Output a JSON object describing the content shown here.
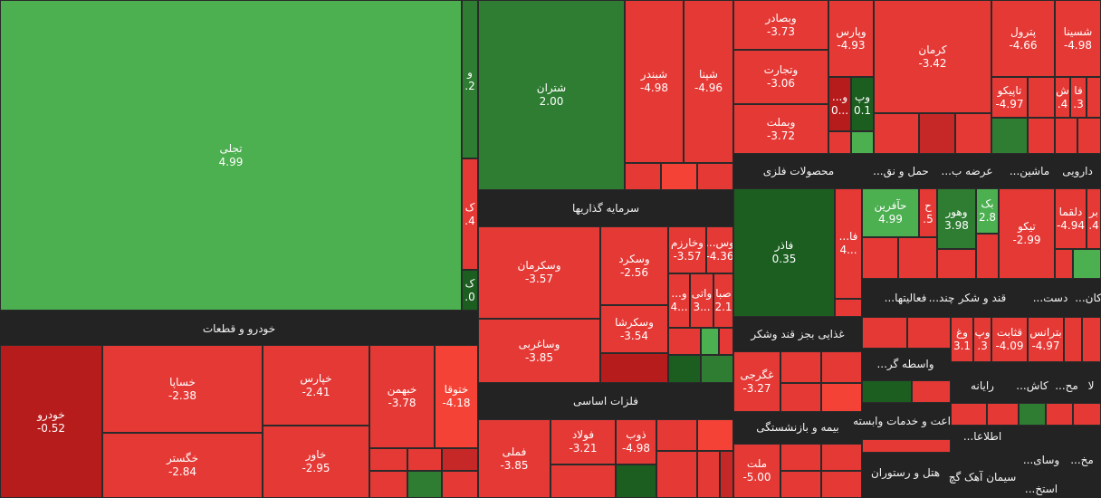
{
  "tiles": [
    {
      "label": "تجلی",
      "value": "4.99"
    },
    {
      "label": "و",
      "value": ".2"
    },
    {
      "label": "ک",
      "value": ".4"
    },
    {
      "label": "ک",
      "value": ".0"
    },
    {
      "label": "خودرو",
      "value": "-0.52"
    },
    {
      "label": "خساپا",
      "value": "-2.38"
    },
    {
      "label": "خگستر",
      "value": "-2.84"
    },
    {
      "label": "خپارس",
      "value": "-2.41"
    },
    {
      "label": "خاور",
      "value": "-2.95"
    },
    {
      "label": "خبهمن",
      "value": "-3.78"
    },
    {
      "label": "ختوقا",
      "value": "-4.18"
    },
    {
      "label": "شتران",
      "value": "2.00"
    },
    {
      "label": "شبندر",
      "value": "-4.98"
    },
    {
      "label": "شپنا",
      "value": "-4.96"
    },
    {
      "label": "وسکرمان",
      "value": "-3.57"
    },
    {
      "label": "وسکرد",
      "value": "-2.56"
    },
    {
      "label": "وخارزم",
      "value": "-3.57"
    },
    {
      "label": "وس...",
      "value": "-4.36"
    },
    {
      "label": "و...",
      "value": "4..."
    },
    {
      "label": "واتی",
      "value": "3..."
    },
    {
      "label": "صبا",
      "value": "2.1"
    },
    {
      "label": "وساغربی",
      "value": "-3.85"
    },
    {
      "label": "وسکرشا",
      "value": "-3.54"
    },
    {
      "label": "فملی",
      "value": "-3.85"
    },
    {
      "label": "فولاد",
      "value": "-3.21"
    },
    {
      "label": "ذوب",
      "value": "-4.98"
    },
    {
      "label": "وبصادر",
      "value": "-3.73"
    },
    {
      "label": "وتجارت",
      "value": "-3.06"
    },
    {
      "label": "وبملت",
      "value": "-3.72"
    },
    {
      "label": "وپارس",
      "value": "-4.93"
    },
    {
      "label": "و...",
      "value": "0..."
    },
    {
      "label": "وپ",
      "value": "0.1"
    },
    {
      "label": "کرمان",
      "value": "-3.42"
    },
    {
      "label": "پترول",
      "value": "-4.66"
    },
    {
      "label": "شسینا",
      "value": "-4.98"
    },
    {
      "label": "تاپیکو",
      "value": "-4.97"
    },
    {
      "label": "ش",
      "value": ".4"
    },
    {
      "label": "فا",
      "value": ".3"
    },
    {
      "label": "فاذر",
      "value": "0.35"
    },
    {
      "label": "فا...",
      "value": "4..."
    },
    {
      "label": "حآفرین",
      "value": "4.99"
    },
    {
      "label": "ح",
      "value": ".5"
    },
    {
      "label": "وهور",
      "value": "3.98"
    },
    {
      "label": "بک",
      "value": "2.8"
    },
    {
      "label": "تیکو",
      "value": "-2.99"
    },
    {
      "label": "دلقما",
      "value": "-4.94"
    },
    {
      "label": "بر",
      "value": ".4"
    },
    {
      "label": "غگرجی",
      "value": "-3.27"
    },
    {
      "label": "ملت",
      "value": "-5.00"
    },
    {
      "label": "وغ",
      "value": "3.1"
    },
    {
      "label": "وپ",
      "value": ".3"
    },
    {
      "label": "قثابت",
      "value": "-4.09"
    },
    {
      "label": "بترانس",
      "value": "-4.97"
    }
  ],
  "headers": [
    "خودرو و قطعات",
    "سرمایه گذاریها",
    "فلزات اساسی",
    "محصولات فلزی",
    "حمل و نق...",
    "عرضه ب...",
    "ماشین...",
    "دارویی",
    "فعالیتها...",
    "قند و شکر",
    "چند...",
    "دست...",
    "کان...",
    "غذایی بجز قند وشکر",
    "واسطه گر...",
    "اعت و خدمات وابسته",
    "هتل و رستوران",
    "بیمه و بازنشستگی",
    "رایانه",
    "کاش...",
    "مح...",
    "لا",
    "اطلاعا...",
    "وسای...",
    "مخ...",
    "سیمان آهک گچ",
    "استخ..."
  ]
}
